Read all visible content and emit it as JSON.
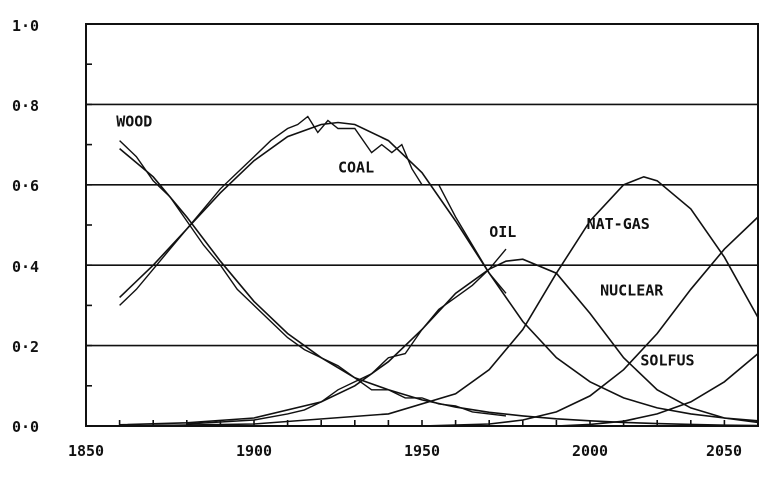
{
  "chart_data": {
    "type": "line",
    "title": "",
    "xlabel": "",
    "ylabel": "",
    "xlim": [
      1850,
      2050
    ],
    "ylim": [
      0,
      1.0
    ],
    "grid": "horizontal",
    "x_ticks": [
      "1850",
      "1900",
      "1950",
      "2000",
      "2050"
    ],
    "y_ticks": [
      "0·0",
      "0·2",
      "0·4",
      "0·6",
      "0·8",
      "1·0"
    ],
    "series": [
      {
        "name": "WOOD",
        "kind": "fitted",
        "x": [
          1860,
          1870,
          1880,
          1890,
          1900,
          1910,
          1920,
          1930,
          1940,
          1950,
          1960,
          1970,
          1980,
          1990,
          2000,
          2010,
          2020,
          2030,
          2040,
          2050
        ],
        "y": [
          0.69,
          0.62,
          0.52,
          0.41,
          0.31,
          0.23,
          0.17,
          0.12,
          0.09,
          0.065,
          0.047,
          0.034,
          0.025,
          0.018,
          0.013,
          0.009,
          0.006,
          0.004,
          0.002,
          0.001
        ]
      },
      {
        "name": "WOOD",
        "kind": "historical",
        "x": [
          1860,
          1865,
          1870,
          1875,
          1880,
          1885,
          1890,
          1895,
          1900,
          1905,
          1910,
          1915,
          1920,
          1925,
          1930,
          1935,
          1940,
          1945,
          1950,
          1955,
          1960,
          1965,
          1970,
          1975
        ],
        "y": [
          0.71,
          0.67,
          0.61,
          0.57,
          0.51,
          0.45,
          0.4,
          0.34,
          0.3,
          0.26,
          0.22,
          0.19,
          0.17,
          0.15,
          0.12,
          0.09,
          0.09,
          0.07,
          0.07,
          0.055,
          0.05,
          0.035,
          0.03,
          0.025
        ]
      },
      {
        "name": "COAL",
        "kind": "fitted",
        "x": [
          1860,
          1870,
          1880,
          1890,
          1900,
          1910,
          1920,
          1925,
          1930,
          1940,
          1950,
          1960,
          1970,
          1980,
          1990,
          2000,
          2010,
          2020,
          2030,
          2040,
          2050
        ],
        "y": [
          0.32,
          0.4,
          0.49,
          0.58,
          0.66,
          0.72,
          0.75,
          0.755,
          0.75,
          0.71,
          0.63,
          0.51,
          0.38,
          0.26,
          0.17,
          0.11,
          0.07,
          0.045,
          0.03,
          0.02,
          0.013
        ]
      },
      {
        "name": "COAL",
        "kind": "historical",
        "x": [
          1860,
          1865,
          1870,
          1875,
          1880,
          1885,
          1890,
          1895,
          1900,
          1905,
          1910,
          1913,
          1916,
          1919,
          1922,
          1925,
          1930,
          1935,
          1938,
          1941,
          1944,
          1947,
          1950,
          1955,
          1960,
          1965,
          1970,
          1975
        ],
        "y": [
          0.3,
          0.34,
          0.39,
          0.44,
          0.49,
          0.54,
          0.59,
          0.63,
          0.67,
          0.71,
          0.74,
          0.75,
          0.77,
          0.73,
          0.76,
          0.74,
          0.74,
          0.68,
          0.7,
          0.68,
          0.7,
          0.64,
          0.6,
          0.6,
          0.52,
          0.45,
          0.38,
          0.33
        ]
      },
      {
        "name": "OIL",
        "kind": "fitted",
        "x": [
          1860,
          1880,
          1900,
          1920,
          1930,
          1940,
          1950,
          1960,
          1970,
          1975,
          1980,
          1990,
          2000,
          2010,
          2020,
          2030,
          2040,
          2050
        ],
        "y": [
          0.003,
          0.008,
          0.02,
          0.06,
          0.1,
          0.16,
          0.24,
          0.33,
          0.39,
          0.41,
          0.415,
          0.38,
          0.28,
          0.17,
          0.09,
          0.045,
          0.02,
          0.009
        ]
      },
      {
        "name": "OIL",
        "kind": "historical",
        "x": [
          1880,
          1890,
          1900,
          1910,
          1915,
          1920,
          1925,
          1930,
          1935,
          1940,
          1945,
          1950,
          1955,
          1960,
          1965,
          1970,
          1975
        ],
        "y": [
          0.005,
          0.01,
          0.015,
          0.03,
          0.04,
          0.06,
          0.09,
          0.11,
          0.13,
          0.17,
          0.18,
          0.24,
          0.29,
          0.32,
          0.35,
          0.39,
          0.44
        ]
      },
      {
        "name": "NAT-GAS",
        "kind": "fitted",
        "x": [
          1860,
          1900,
          1940,
          1960,
          1970,
          1980,
          1990,
          2000,
          2010,
          2016,
          2020,
          2030,
          2040,
          2050
        ],
        "y": [
          0.0,
          0.005,
          0.03,
          0.08,
          0.14,
          0.24,
          0.38,
          0.51,
          0.6,
          0.62,
          0.61,
          0.54,
          0.42,
          0.27
        ]
      },
      {
        "name": "NUCLEAR",
        "kind": "fitted",
        "x": [
          1950,
          1970,
          1980,
          1990,
          2000,
          2010,
          2020,
          2030,
          2040,
          2050
        ],
        "y": [
          0.0,
          0.005,
          0.015,
          0.035,
          0.075,
          0.14,
          0.23,
          0.34,
          0.44,
          0.52
        ]
      },
      {
        "name": "SOLFUS",
        "kind": "fitted",
        "x": [
          1990,
          2000,
          2010,
          2020,
          2030,
          2040,
          2050
        ],
        "y": [
          0.0,
          0.004,
          0.012,
          0.03,
          0.06,
          0.11,
          0.18
        ]
      }
    ],
    "labels": [
      {
        "text": "WOOD",
        "x": 1859,
        "y": 0.745
      },
      {
        "text": "COAL",
        "x": 1925,
        "y": 0.63
      },
      {
        "text": "OIL",
        "x": 1970,
        "y": 0.47
      },
      {
        "text": "NAT-GAS",
        "x": 1999,
        "y": 0.49
      },
      {
        "text": "NUCLEAR",
        "x": 2003,
        "y": 0.325
      },
      {
        "text": "SOLFUS",
        "x": 2015,
        "y": 0.15
      }
    ]
  }
}
